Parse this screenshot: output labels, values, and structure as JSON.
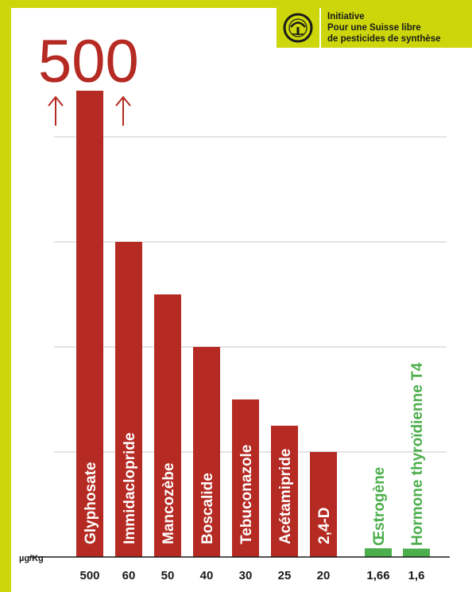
{
  "banner": {
    "line1": "Initiative",
    "line2": "Pour une Suisse libre",
    "line3": "de pesticides de synthèse"
  },
  "chart_data": {
    "type": "bar",
    "title": "",
    "unit": "µg/Kg",
    "highlight_value": "500",
    "categories": [
      "Glyphosate",
      "Immidaclopride",
      "Mancozèbe",
      "Boscalide",
      "Tebuconazole",
      "Acétamipride",
      "2,4-D",
      "Œstrogène",
      "Hormone thyroïdienne T4"
    ],
    "values": [
      500,
      60,
      50,
      40,
      30,
      25,
      20,
      1.66,
      1.6
    ],
    "value_labels": [
      "500",
      "60",
      "50",
      "40",
      "30",
      "25",
      "20",
      "1,66",
      "1,6"
    ],
    "colors": {
      "pesticide": "#b52a23",
      "hormone": "#4cae4c",
      "frame": "#ccd60a",
      "grid": "#c8c8c8"
    },
    "series_groups": [
      "pesticide",
      "pesticide",
      "pesticide",
      "pesticide",
      "pesticide",
      "pesticide",
      "pesticide",
      "hormone",
      "hormone"
    ],
    "ylim": [
      0,
      80
    ],
    "axis_break": true,
    "grid": true
  }
}
